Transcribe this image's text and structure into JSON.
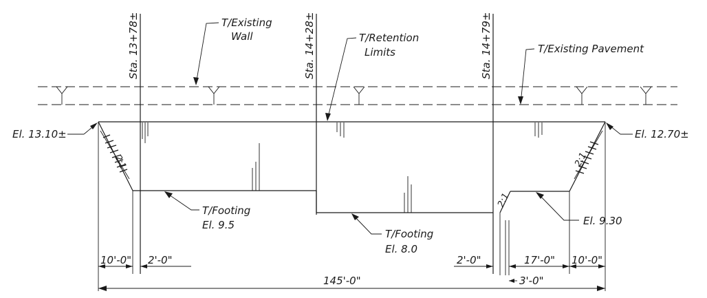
{
  "stations": {
    "sta1": "Sta. 13+78±",
    "sta2": "Sta. 14+28±",
    "sta3": "Sta. 14+79±"
  },
  "callouts": {
    "existing_wall_1": "T/Existing",
    "existing_wall_2": "Wall",
    "retention_1": "T/Retention",
    "retention_2": "Limits",
    "existing_pavement": "T/Existing Pavement",
    "footing_left_1": "T/Footing",
    "footing_left_2": "El. 9.5",
    "footing_mid_1": "T/Footing",
    "footing_mid_2": "El. 8.0",
    "el_left": "El. 13.10±",
    "el_right": "El. 12.70±",
    "el_right_low": "El. 9.30"
  },
  "slopes": {
    "left": "2:1",
    "right": "2:1",
    "small": "2:1"
  },
  "dimensions": {
    "d_left_10": "10'-0\"",
    "d_left_2": "2'-0\"",
    "d_right_2": "2'-0\"",
    "d_right_17": "17'-0\"",
    "d_right_10": "10'-0\"",
    "d_right_3": "3'-0\"",
    "d_total": "145'-0\""
  }
}
